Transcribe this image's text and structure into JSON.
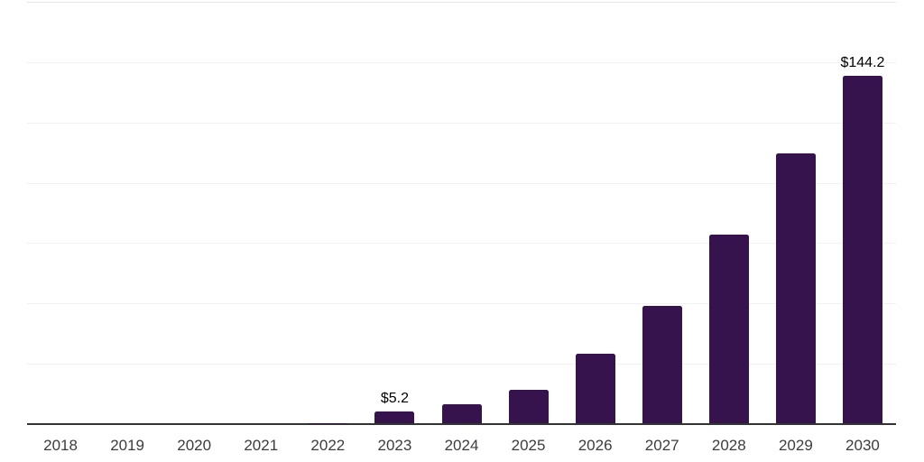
{
  "chart_data": {
    "type": "bar",
    "categories": [
      "2018",
      "2019",
      "2020",
      "2021",
      "2022",
      "2023",
      "2024",
      "2025",
      "2026",
      "2027",
      "2028",
      "2029",
      "2030"
    ],
    "values": [
      0,
      0,
      0,
      0,
      0.3,
      5.2,
      8.1,
      13.9,
      28.9,
      48.9,
      78.5,
      112.2,
      144.2
    ],
    "data_labels": {
      "2023": "$5.2",
      "2030": "$144.2"
    },
    "ylim": [
      0,
      175
    ],
    "gridline_interval": 25,
    "grid": "horizontal",
    "legend": "none",
    "y_axis_labels_visible": false,
    "colors": {
      "bar": "#36134d",
      "axis_line": "#333333",
      "gridline": "#f2f2f2",
      "top_border": "#e6e6e6",
      "x_tick_label": "#3d3d3d",
      "data_label": "#000000",
      "background": "#ffffff"
    }
  }
}
